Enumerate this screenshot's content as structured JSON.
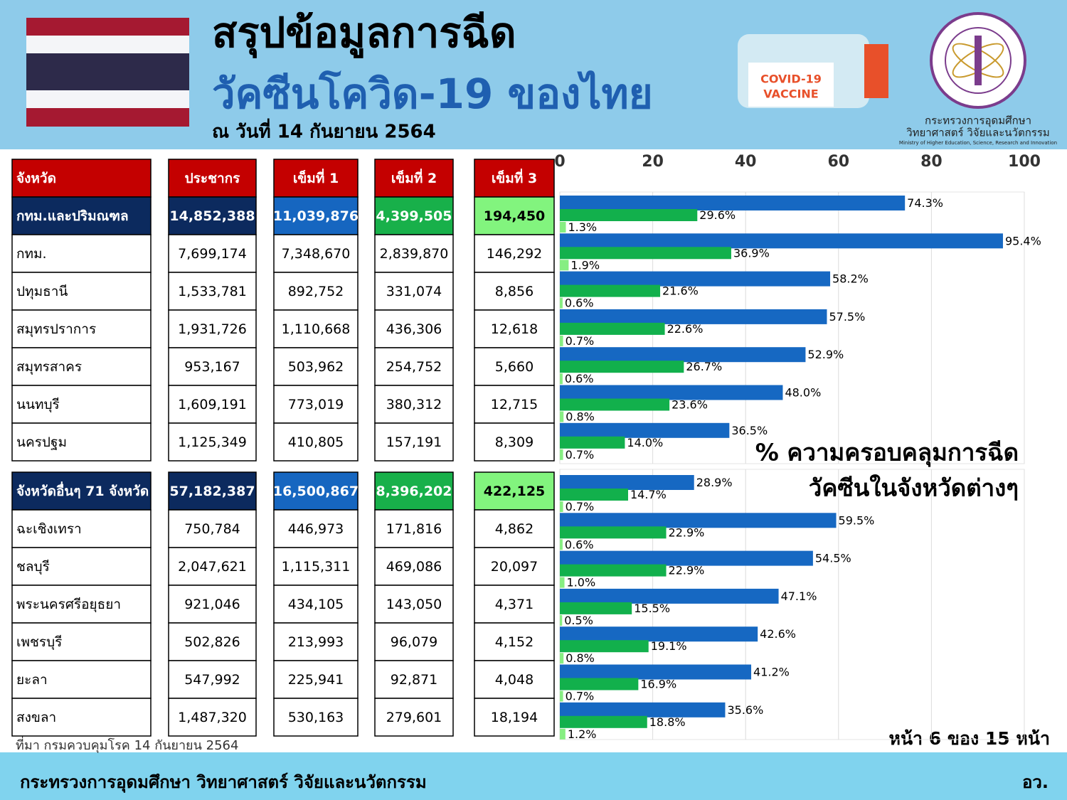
{
  "header": {
    "title": "สรุปข้อมูลการฉีด",
    "subtitle": "วัคซีนโควิด-19 ของไทย",
    "date": "ณ วันที่ 14 กันยายน 2564",
    "vaccine_label": [
      "COVID-19",
      "VACCINE"
    ],
    "ministry": [
      "กระทรวงการอุดมศึกษา",
      "วิทยาศาสตร์ วิจัยและนวัตกรรม",
      "Ministry of Higher Education, Science, Research and Innovation"
    ]
  },
  "table": {
    "columns": [
      "จังหวัด",
      "ประชากร",
      "เข็มที่ 1",
      "เข็มที่ 2",
      "เข็มที่ 3"
    ],
    "groups": [
      {
        "total": [
          "กทม.และปริมณฑล",
          "14,852,388",
          "11,039,876",
          "4,399,505",
          "194,450"
        ],
        "rows": [
          [
            "กทม.",
            "7,699,174",
            "7,348,670",
            "2,839,870",
            "146,292"
          ],
          [
            "ปทุมธานี",
            "1,533,781",
            "892,752",
            "331,074",
            "8,856"
          ],
          [
            "สมุทรปราการ",
            "1,931,726",
            "1,110,668",
            "436,306",
            "12,618"
          ],
          [
            "สมุทรสาคร",
            "953,167",
            "503,962",
            "254,752",
            "5,660"
          ],
          [
            "นนทบุรี",
            "1,609,191",
            "773,019",
            "380,312",
            "12,715"
          ],
          [
            "นครปฐม",
            "1,125,349",
            "410,805",
            "157,191",
            "8,309"
          ]
        ]
      },
      {
        "total": [
          "จังหวัดอื่นๆ 71 จังหวัด",
          "57,182,387",
          "16,500,867",
          "8,396,202",
          "422,125"
        ],
        "rows": [
          [
            "ฉะเชิงเทรา",
            "750,784",
            "446,973",
            "171,816",
            "4,862"
          ],
          [
            "ชลบุรี",
            "2,047,621",
            "1,115,311",
            "469,086",
            "20,097"
          ],
          [
            "พระนครศรีอยุธยา",
            "921,046",
            "434,105",
            "143,050",
            "4,371"
          ],
          [
            "เพชรบุรี",
            "502,826",
            "213,993",
            "96,079",
            "4,152"
          ],
          [
            "ยะลา",
            "547,992",
            "225,941",
            "92,871",
            "4,048"
          ],
          [
            "สงขลา",
            "1,487,320",
            "530,163",
            "279,601",
            "18,194"
          ]
        ]
      }
    ]
  },
  "chart_data": [
    {
      "type": "bar",
      "orientation": "horizontal",
      "xlim": [
        0,
        100
      ],
      "xticks": [
        0,
        20,
        40,
        60,
        80,
        100
      ],
      "grid": true,
      "series": [
        {
          "color": "#1668c2",
          "values": [
            74.3,
            95.4,
            58.2,
            57.5,
            52.9,
            48.0,
            36.5
          ],
          "value_labels": [
            "74.3%",
            "95.4%",
            "58.2%",
            "57.5%",
            "52.9%",
            "48.0%",
            "36.5%"
          ]
        },
        {
          "color": "#12b04c",
          "values": [
            29.6,
            36.9,
            21.6,
            22.6,
            26.7,
            23.6,
            14.0
          ],
          "value_labels": [
            "29.6%",
            "36.9%",
            "21.6%",
            "22.6%",
            "26.7%",
            "23.6%",
            "14.0%"
          ]
        },
        {
          "color": "#86ee82",
          "values": [
            1.3,
            1.9,
            0.6,
            0.7,
            0.6,
            0.8,
            0.7
          ],
          "value_labels": [
            "1.3%",
            "1.9%",
            "0.6%",
            "0.7%",
            "0.6%",
            "0.8%",
            "0.7%"
          ]
        }
      ]
    },
    {
      "type": "bar",
      "orientation": "horizontal",
      "xlim": [
        0,
        100
      ],
      "grid": true,
      "annotation": [
        "% ความครอบคลุมการฉีด",
        "วัคซีนในจังหวัดต่างๆ"
      ],
      "series": [
        {
          "color": "#1668c2",
          "values": [
            28.9,
            59.5,
            54.5,
            47.1,
            42.6,
            41.2,
            35.6
          ],
          "value_labels": [
            "28.9%",
            "59.5%",
            "54.5%",
            "47.1%",
            "42.6%",
            "41.2%",
            "35.6%"
          ]
        },
        {
          "color": "#12b04c",
          "values": [
            14.7,
            22.9,
            22.9,
            15.5,
            19.1,
            16.9,
            18.8
          ],
          "value_labels": [
            "14.7%",
            "22.9%",
            "22.9%",
            "15.5%",
            "19.1%",
            "16.9%",
            "18.8%"
          ]
        },
        {
          "color": "#86ee82",
          "values": [
            0.7,
            0.6,
            1.0,
            0.5,
            0.8,
            0.7,
            1.2
          ],
          "value_labels": [
            "0.7%",
            "0.6%",
            "1.0%",
            "0.5%",
            "0.8%",
            "0.7%",
            "1.2%"
          ]
        }
      ]
    }
  ],
  "page_number": "หน้า 6 ของ 15 หน้า",
  "source": "ที่มา กรมควบคุมโรค 14 กันยายน 2564",
  "footer": {
    "text": "กระทรวงการอุดมศึกษา วิทยาศาสตร์ วิจัยและนวัตกรรม",
    "abbr": "อว."
  }
}
